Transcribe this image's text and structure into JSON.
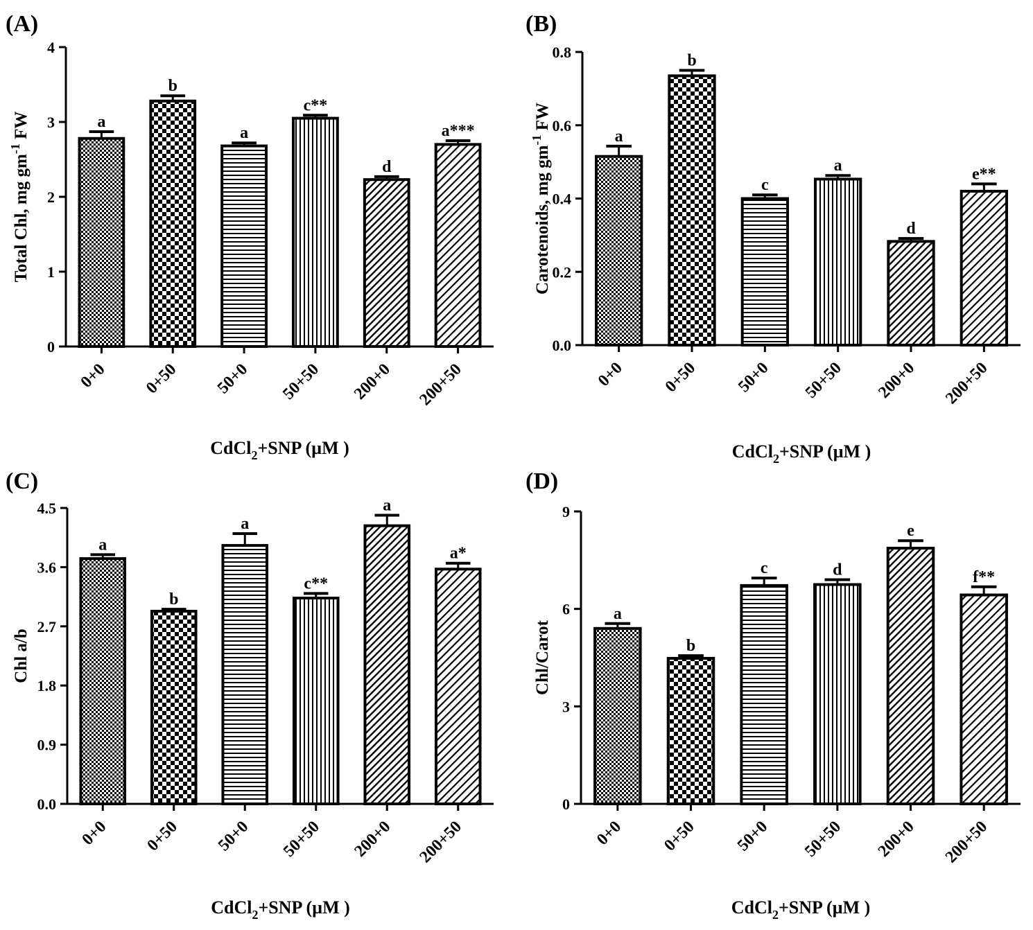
{
  "chart_data": [
    {
      "panel": "(A)",
      "type": "bar",
      "ylabel": "Total Chl, mg gm",
      "ylabel_sup": "-1",
      "ylabel_tail": " FW",
      "xlabel_pre": "CdCl",
      "xlabel_sub": "2",
      "xlabel_post": "+SNP (µM )",
      "categories": [
        "0+0",
        "0+50",
        "50+0",
        "50+50",
        "200+0",
        "200+50"
      ],
      "values": [
        2.78,
        3.28,
        2.68,
        3.05,
        2.23,
        2.7
      ],
      "errors": [
        0.09,
        0.07,
        0.04,
        0.04,
        0.04,
        0.05
      ],
      "annotations": [
        "a",
        "b",
        "a",
        "c**",
        "d",
        "a***"
      ],
      "patterns": [
        "fine-check",
        "check",
        "hlines",
        "vlines",
        "diag",
        "diag-wide"
      ],
      "ylim": [
        0,
        4
      ],
      "yticks": [
        "0",
        "1",
        "2",
        "3",
        "4"
      ]
    },
    {
      "panel": "(B)",
      "type": "bar",
      "ylabel": "Carotenoids, mg gm",
      "ylabel_sup": "-1",
      "ylabel_tail": " FW",
      "xlabel_pre": "CdCl",
      "xlabel_sub": "2",
      "xlabel_post": "+SNP (µM )",
      "categories": [
        "0+0",
        "0+50",
        "50+0",
        "50+50",
        "200+0",
        "200+50"
      ],
      "values": [
        0.515,
        0.735,
        0.4,
        0.453,
        0.283,
        0.42
      ],
      "errors": [
        0.028,
        0.015,
        0.01,
        0.01,
        0.008,
        0.02
      ],
      "annotations": [
        "a",
        "b",
        "c",
        "a",
        "d",
        "e**"
      ],
      "patterns": [
        "fine-check",
        "check",
        "hlines",
        "vlines",
        "diag",
        "diag-wide"
      ],
      "ylim": [
        0,
        0.8
      ],
      "yticks": [
        "0.0",
        "0.2",
        "0.4",
        "0.6",
        "0.8"
      ]
    },
    {
      "panel": "(C)",
      "type": "bar",
      "ylabel": "Chl a/b",
      "ylabel_sup": "",
      "ylabel_tail": "",
      "xlabel_pre": "CdCl",
      "xlabel_sub": "2",
      "xlabel_post": "+SNP (µM )",
      "categories": [
        "0+0",
        "0+50",
        "50+0",
        "50+50",
        "200+0",
        "200+50"
      ],
      "values": [
        3.73,
        2.93,
        3.93,
        3.13,
        4.23,
        3.57
      ],
      "errors": [
        0.06,
        0.03,
        0.18,
        0.07,
        0.16,
        0.09
      ],
      "annotations": [
        "a",
        "b",
        "a",
        "c**",
        "a",
        "a*"
      ],
      "patterns": [
        "fine-check",
        "check",
        "hlines",
        "vlines",
        "diag",
        "diag-wide"
      ],
      "ylim": [
        0,
        4.5
      ],
      "yticks": [
        "0.0",
        "0.9",
        "1.8",
        "2.7",
        "3.6",
        "4.5"
      ]
    },
    {
      "panel": "(D)",
      "type": "bar",
      "ylabel": "Chl/Carot",
      "ylabel_sup": "",
      "ylabel_tail": "",
      "xlabel_pre": "CdCl",
      "xlabel_sub": "2",
      "xlabel_post": "+SNP (µM )",
      "categories": [
        "0+0",
        "0+50",
        "50+0",
        "50+50",
        "200+0",
        "200+50"
      ],
      "values": [
        5.4,
        4.48,
        6.72,
        6.75,
        7.87,
        6.43
      ],
      "errors": [
        0.15,
        0.08,
        0.23,
        0.15,
        0.23,
        0.25
      ],
      "annotations": [
        "a",
        "b",
        "c",
        "d",
        "e",
        "f**"
      ],
      "patterns": [
        "fine-check",
        "check",
        "hlines",
        "vlines",
        "diag",
        "diag-wide"
      ],
      "ylim": [
        0,
        9
      ],
      "yticks": [
        "0",
        "3",
        "6",
        "9"
      ]
    }
  ]
}
